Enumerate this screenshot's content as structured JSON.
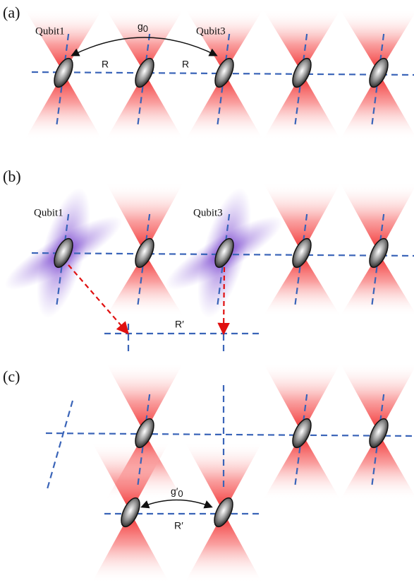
{
  "panels": [
    {
      "label": "(a)",
      "qubit_labels": [
        "Qubit1",
        "Qubit3"
      ],
      "coupling": {
        "symbol": "g",
        "subscript": "0"
      },
      "distances": [
        "R",
        "R"
      ]
    },
    {
      "label": "(b)",
      "qubit_labels": [
        "Qubit1",
        "Qubit3"
      ],
      "distances": [
        "R′"
      ]
    },
    {
      "label": "(c)",
      "coupling": {
        "symbol": "g′",
        "subscript": "0"
      },
      "distances": [
        "R′"
      ]
    }
  ]
}
